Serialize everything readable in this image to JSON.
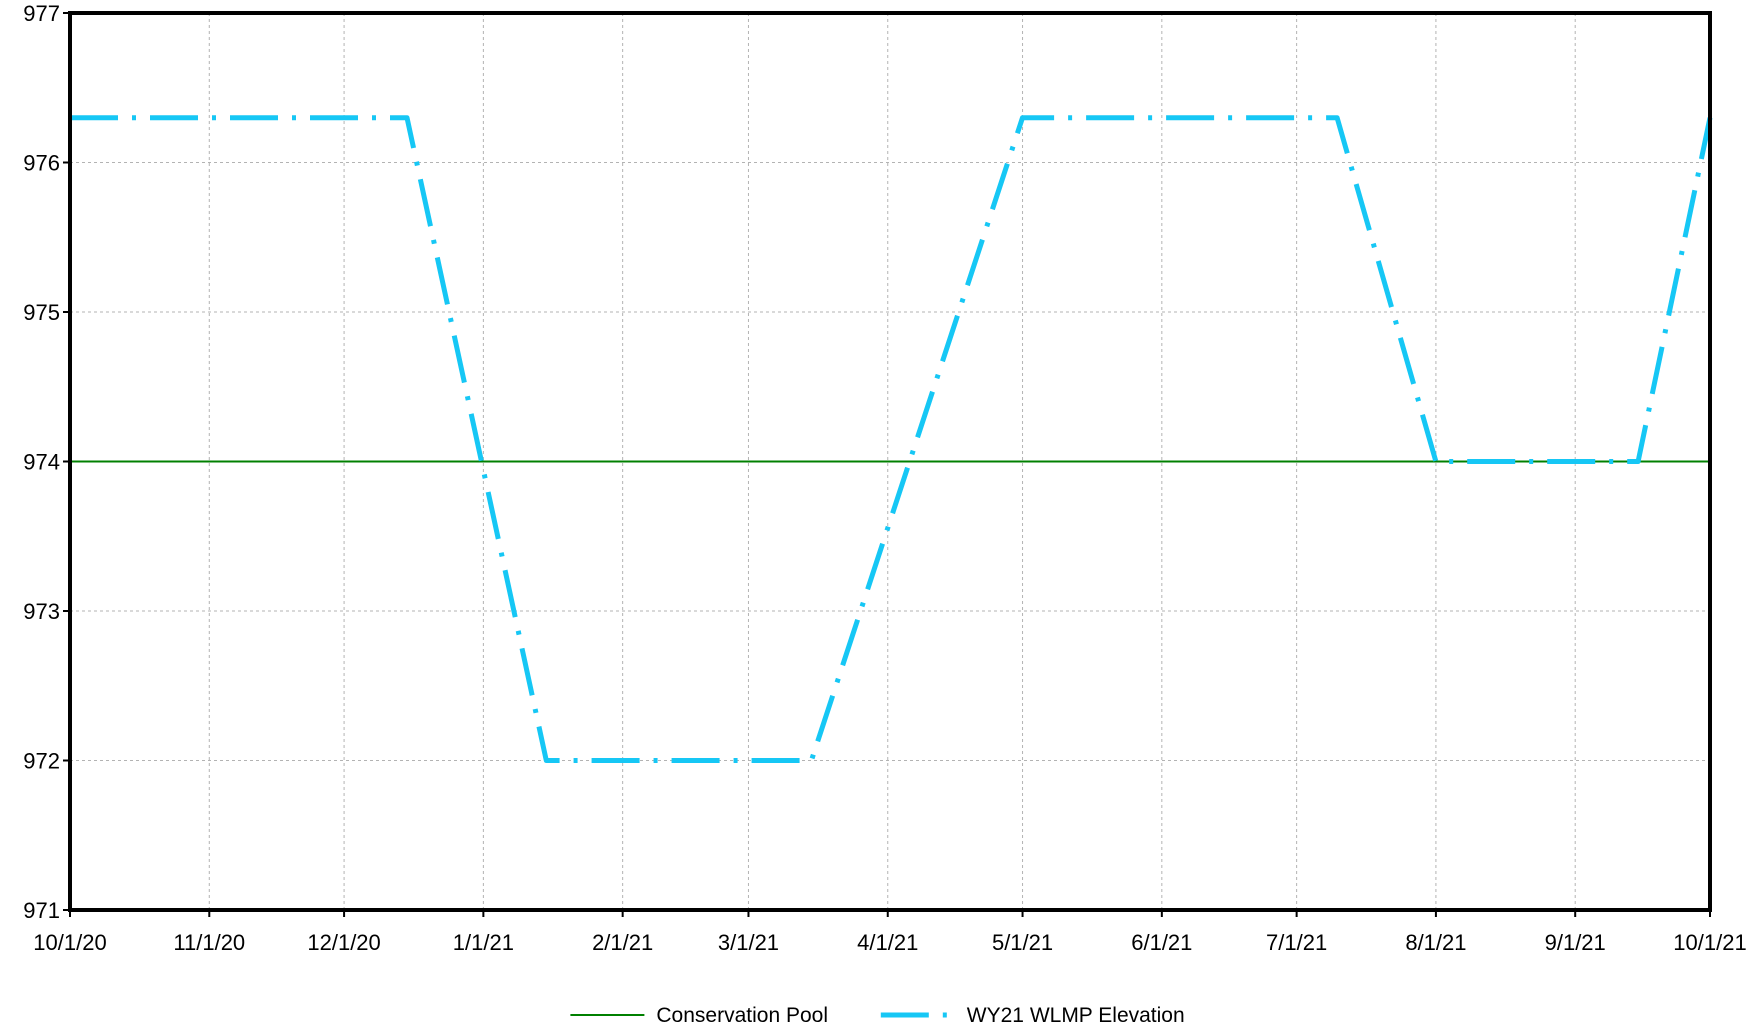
{
  "chart_data": {
    "type": "line",
    "title": "",
    "xlabel": "",
    "ylabel": "",
    "x_ticks": [
      "10/1/20",
      "11/1/20",
      "12/1/20",
      "1/1/21",
      "2/1/21",
      "3/1/21",
      "4/1/21",
      "5/1/21",
      "6/1/21",
      "7/1/21",
      "8/1/21",
      "9/1/21",
      "10/1/21"
    ],
    "y_ticks": [
      "977",
      "976",
      "975",
      "974",
      "973",
      "972",
      "971"
    ],
    "ylim": [
      971,
      977
    ],
    "xlim": [
      "2020-10-01",
      "2021-10-01"
    ],
    "grid": true,
    "legend_position": "bottom",
    "series": [
      {
        "name": "Conservation Pool",
        "color": "#008000",
        "style": "solid",
        "points": [
          [
            "2020-10-01",
            974
          ],
          [
            "2021-10-01",
            974
          ]
        ]
      },
      {
        "name": "WY21 WLMP Elevation",
        "color": "#16C7F5",
        "style": "dash-dot",
        "points": [
          [
            "2020-10-01",
            976.3
          ],
          [
            "2020-12-15",
            976.3
          ],
          [
            "2021-01-15",
            972.0
          ],
          [
            "2021-03-15",
            972.0
          ],
          [
            "2021-05-01",
            976.3
          ],
          [
            "2021-07-10",
            976.3
          ],
          [
            "2021-08-01",
            974.0
          ],
          [
            "2021-09-15",
            974.0
          ],
          [
            "2021-10-01",
            976.3
          ]
        ]
      }
    ]
  }
}
